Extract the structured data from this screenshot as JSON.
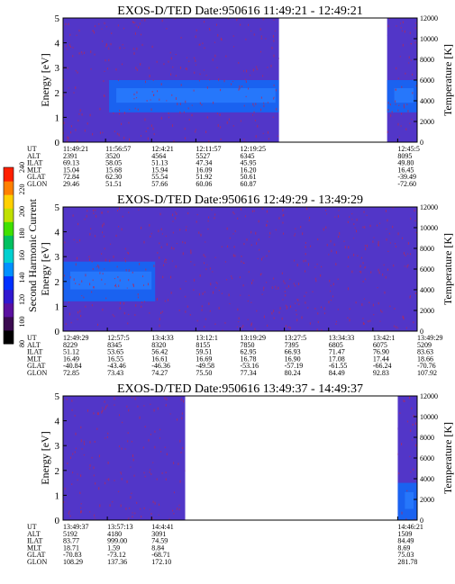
{
  "colors": {
    "background": "#ffffff",
    "plasma_base": "#5236c8",
    "plasma_band": "#1a62f0",
    "plasma_core": "#2c80ff",
    "speckle": "#b22a5a",
    "colorbar": [
      "#000000",
      "#3a0a50",
      "#5a10a0",
      "#3018d0",
      "#0030ff",
      "#0090ff",
      "#00d0d0",
      "#00c060",
      "#40e000",
      "#c0e000",
      "#ffd000",
      "#ff8000",
      "#ff2000"
    ]
  },
  "colorbar": {
    "label": "Second Harmonic Current",
    "ticks": [
      "80",
      "100",
      "120",
      "140",
      "160",
      "180",
      "200",
      "220",
      "240"
    ]
  },
  "chart_data": [
    {
      "type": "heatmap",
      "title": "EXOS-D/TED   Date:950616   11:49:21 - 12:49:21",
      "ylabel": "Energy [eV]",
      "ylabel_right": "Temperature [K]",
      "ylim": [
        0,
        5
      ],
      "ylim_right": [
        0,
        12000
      ],
      "yticks": [
        "0",
        "1",
        "2",
        "3",
        "4",
        "5"
      ],
      "yticks_right": [
        "0",
        "2000",
        "4000",
        "6000",
        "8000",
        "10000",
        "12000"
      ],
      "data_coverage": [
        [
          0.0,
          0.61
        ],
        [
          0.915,
          1.0
        ]
      ],
      "dominant_band_eV": [
        1.2,
        2.5
      ],
      "table": {
        "row_labels": [
          "UT",
          "ALT",
          "ILAT",
          "MLT",
          "GLAT",
          "GLON"
        ],
        "columns": [
          {
            "pos": 0.0,
            "values": [
              "11:49:21",
              "2391",
              "69.13",
              "15.04",
              "72.84",
              "29.46"
            ]
          },
          {
            "pos": 0.12,
            "values": [
              "11:56:57",
              "3520",
              "58.05",
              "15.68",
              "62.30",
              "51.51"
            ]
          },
          {
            "pos": 0.25,
            "values": [
              "12:4:21",
              "4564",
              "51.13",
              "15.94",
              "55.54",
              "57.66"
            ]
          },
          {
            "pos": 0.375,
            "values": [
              "12:11:57",
              "5527",
              "47.34",
              "16.09",
              "51.92",
              "60.06"
            ]
          },
          {
            "pos": 0.5,
            "values": [
              "12:19:25",
              "6345",
              "45.95",
              "16.20",
              "50.61",
              "60.87"
            ]
          },
          {
            "pos": 0.945,
            "values": [
              "12:45:5",
              "8095",
              "49.80",
              "16.45",
              "-39.49",
              "-72.60"
            ]
          }
        ]
      }
    },
    {
      "type": "heatmap",
      "title": "EXOS-D/TED   Date:950616   12:49:29 - 13:49:29",
      "ylabel": "Energy [eV]",
      "ylabel_right": "Temperature [K]",
      "ylim": [
        0,
        5
      ],
      "ylim_right": [
        0,
        12000
      ],
      "yticks": [
        "0",
        "1",
        "2",
        "3",
        "4",
        "5"
      ],
      "yticks_right": [
        "0",
        "2000",
        "4000",
        "6000",
        "8000",
        "10000",
        "12000"
      ],
      "data_coverage": [
        [
          0.0,
          1.0
        ]
      ],
      "dominant_band_eV": [
        1.2,
        2.8
      ],
      "table": {
        "row_labels": [
          "UT",
          "ALT",
          "ILAT",
          "MLT",
          "GLAT",
          "GLON"
        ],
        "columns": [
          {
            "pos": 0.0,
            "values": [
              "12:49:29",
              "8229",
              "51.12",
              "16.49",
              "-40.84",
              "72.85"
            ]
          },
          {
            "pos": 0.125,
            "values": [
              "12:57:5",
              "8345",
              "53.65",
              "16.55",
              "-43.46",
              "73.43"
            ]
          },
          {
            "pos": 0.25,
            "values": [
              "13:4:33",
              "8320",
              "56.42",
              "16.61",
              "-46.36",
              "74.27"
            ]
          },
          {
            "pos": 0.375,
            "values": [
              "13:12:1",
              "8155",
              "59.51",
              "16.69",
              "-49.58",
              "75.50"
            ]
          },
          {
            "pos": 0.5,
            "values": [
              "13:19:29",
              "7850",
              "62.95",
              "16.78",
              "-53.16",
              "77.34"
            ]
          },
          {
            "pos": 0.625,
            "values": [
              "13:27:5",
              "7395",
              "66.93",
              "16.90",
              "-57.19",
              "80.24"
            ]
          },
          {
            "pos": 0.75,
            "values": [
              "13:34:33",
              "6805",
              "71.47",
              "17.08",
              "-61.55",
              "84.49"
            ]
          },
          {
            "pos": 0.875,
            "values": [
              "13:42:1",
              "6075",
              "76.90",
              "17.44",
              "-66.24",
              "92.83"
            ]
          },
          {
            "pos": 1.0,
            "values": [
              "13:49:29",
              "5209",
              "83.63",
              "18.66",
              "-70.76",
              "107.92"
            ]
          }
        ]
      }
    },
    {
      "type": "heatmap",
      "title": "EXOS-D/TED   Date:950616   13:49:37 - 14:49:37",
      "ylabel": "Energy [eV]",
      "ylabel_right": "Temperature [K]",
      "ylim": [
        0,
        5
      ],
      "ylim_right": [
        0,
        12000
      ],
      "yticks": [
        "0",
        "1",
        "2",
        "3",
        "4",
        "5"
      ],
      "yticks_right": [
        "0",
        "2000",
        "4000",
        "6000",
        "8000",
        "10000",
        "12000"
      ],
      "data_coverage": [
        [
          0.0,
          0.345
        ],
        [
          0.945,
          1.0
        ]
      ],
      "dominant_band_eV": [
        0,
        1.5
      ],
      "table": {
        "row_labels": [
          "UT",
          "ALT",
          "ILAT",
          "MLT",
          "GLAT",
          "GLON"
        ],
        "columns": [
          {
            "pos": 0.0,
            "values": [
              "13:49:37",
              "5192",
              "83.77",
              "18.71",
              "-70.83",
              "108.29"
            ]
          },
          {
            "pos": 0.125,
            "values": [
              "13:57:13",
              "4180",
              "999.00",
              "1.59",
              "-73.12",
              "137.36"
            ]
          },
          {
            "pos": 0.25,
            "values": [
              "14:4:41",
              "3091",
              "74.59",
              "8.84",
              "-68.71",
              "172.10"
            ]
          },
          {
            "pos": 0.945,
            "values": [
              "14:46:21",
              "1509",
              "84.49",
              "8.69",
              "75.03",
              "281.78"
            ]
          }
        ]
      }
    }
  ]
}
